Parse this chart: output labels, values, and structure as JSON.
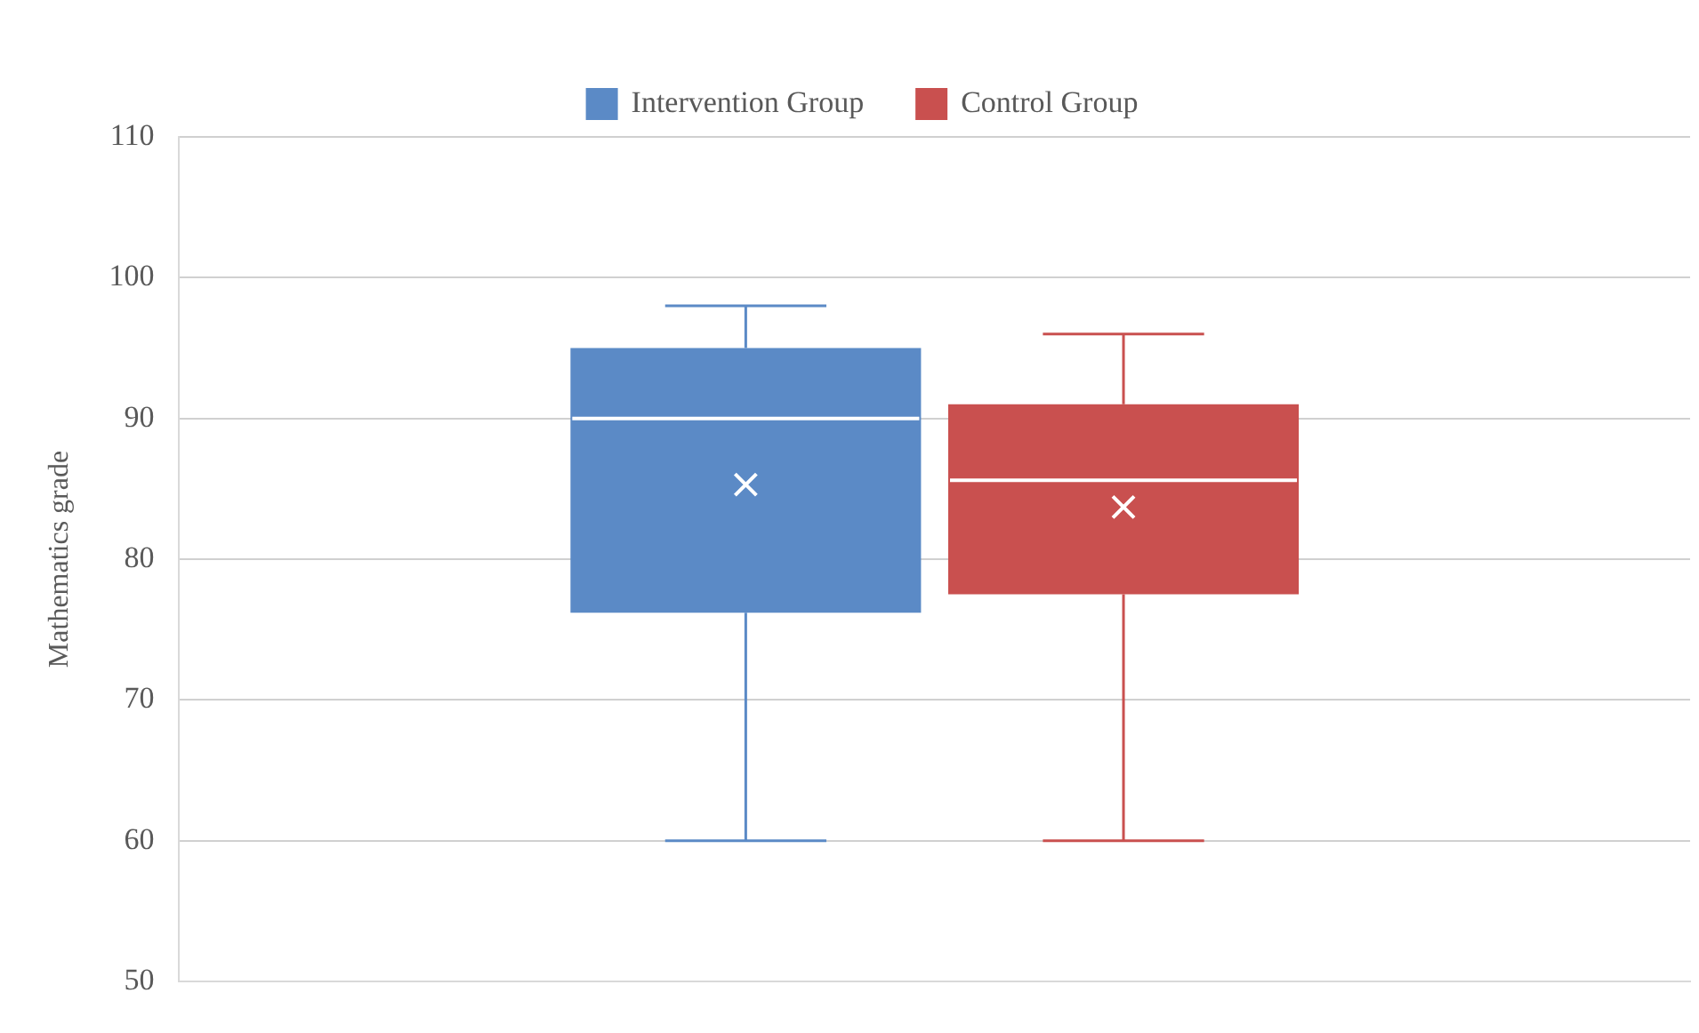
{
  "chart_data": {
    "type": "box",
    "ylabel": "Mathematics grade",
    "categories": [
      null
    ],
    "series": [
      {
        "name": "Intervention Group",
        "color": "#5b8ac6",
        "boxes": [
          {
            "low": 60,
            "q1": 76.2,
            "median": 90,
            "q3": 95,
            "high": 98,
            "mean": 85.3
          }
        ]
      },
      {
        "name": "Control Group",
        "color": "#c9504f",
        "boxes": [
          {
            "low": 60,
            "q1": 77.5,
            "median": 85.6,
            "q3": 91,
            "high": 96,
            "mean": 83.7
          }
        ]
      }
    ],
    "ylim": [
      50,
      110
    ],
    "yticks": [
      50,
      60,
      70,
      80,
      90,
      100,
      110
    ],
    "grid": "y",
    "legend": "top"
  }
}
